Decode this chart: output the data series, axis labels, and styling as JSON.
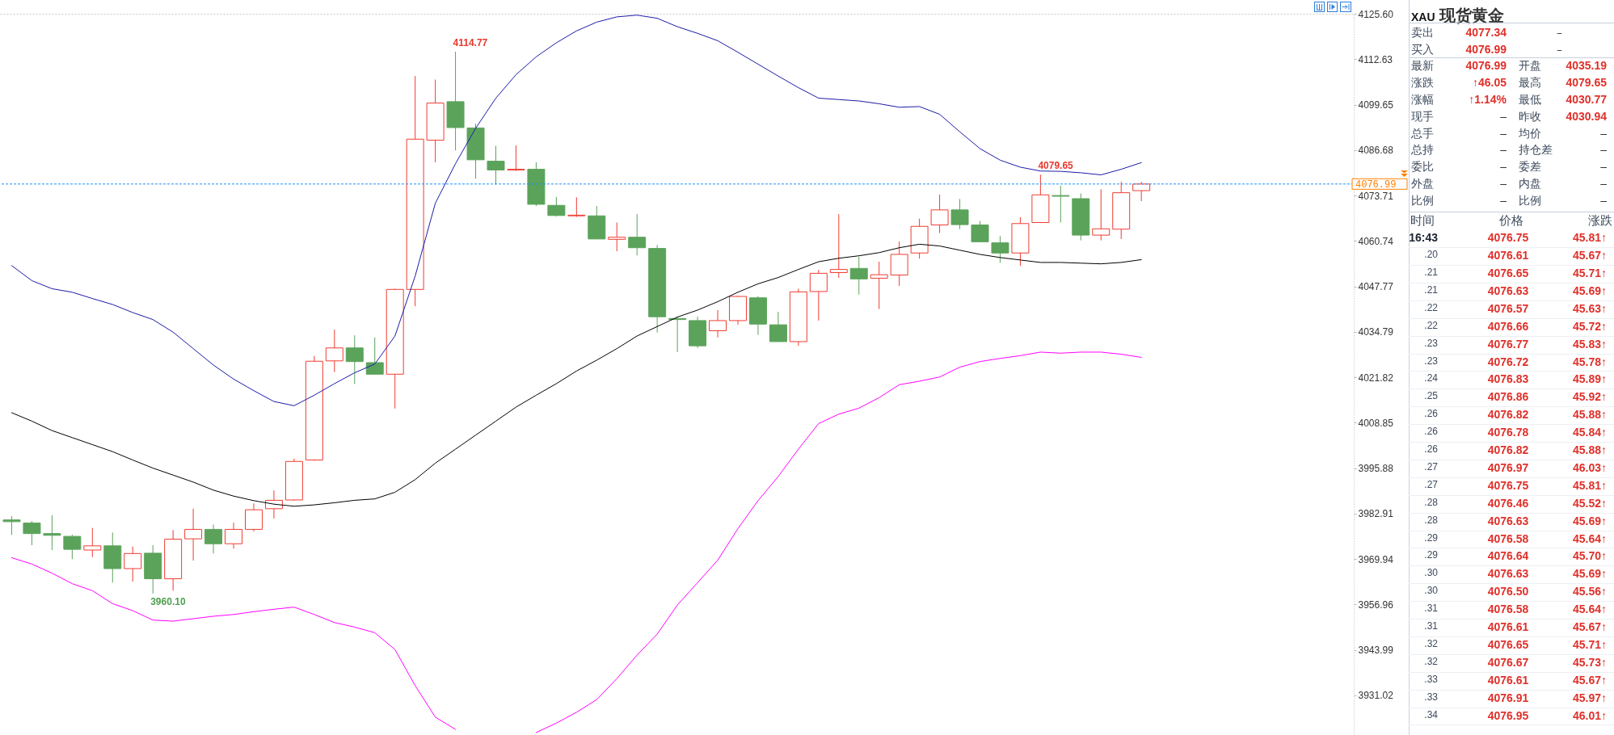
{
  "chart_data": [
    {
      "type": "candlestick",
      "categories": [
        null,
        null,
        null,
        null,
        null,
        null,
        null,
        null,
        null,
        null,
        null,
        null,
        null,
        null,
        null,
        null,
        null,
        null,
        null,
        null,
        null,
        null,
        null,
        null,
        null,
        null,
        null,
        null,
        null,
        null,
        null,
        null,
        null,
        null,
        null,
        null,
        null,
        null,
        null,
        null,
        null,
        null,
        null,
        null,
        null,
        null,
        null,
        null,
        null,
        null,
        null,
        null,
        null,
        null,
        null,
        null,
        null
      ],
      "ohlc": [
        [
          3981.1,
          3982.2,
          3976.8,
          3980.6
        ],
        [
          3980.2,
          3980.8,
          3973.9,
          3977.2
        ],
        [
          3977.2,
          3982.4,
          3972.5,
          3976.7
        ],
        [
          3976.4,
          3976.9,
          3969.9,
          3972.7
        ],
        [
          3972.5,
          3978.8,
          3970.5,
          3973.7
        ],
        [
          3973.7,
          3977.5,
          3963.2,
          3967.2
        ],
        [
          3967.2,
          3973.5,
          3963.5,
          3971.5
        ],
        [
          3971.6,
          3973.9,
          3960.1,
          3964.3
        ],
        [
          3964.3,
          3978.2,
          3960.9,
          3975.6
        ],
        [
          3975.7,
          3984.3,
          3969.5,
          3978.4
        ],
        [
          3978.4,
          3979.8,
          3971.5,
          3974.3
        ],
        [
          3974.3,
          3980.3,
          3972.9,
          3978.4
        ],
        [
          3978.4,
          3985.8,
          3977.8,
          3984.0
        ],
        [
          3984.3,
          3989.5,
          3981.5,
          3986.7
        ],
        [
          3986.8,
          3998.6,
          3986.6,
          3997.8
        ],
        [
          3998.2,
          4027.9,
          3998.0,
          4026.4
        ],
        [
          4026.5,
          4035.4,
          4023.3,
          4030.2
        ],
        [
          4030.2,
          4033.8,
          4019.9,
          4026.3
        ],
        [
          4026.0,
          4033.2,
          4022.7,
          4022.7
        ],
        [
          4022.7,
          4047.1,
          4012.9,
          4046.9
        ],
        [
          4046.9,
          4107.8,
          4042.1,
          4089.8
        ],
        [
          4089.5,
          4106.8,
          4083.2,
          4100.1
        ],
        [
          4100.5,
          4114.77,
          4086.6,
          4093.1
        ],
        [
          4093.0,
          4094.2,
          4078.5,
          4083.9
        ],
        [
          4083.5,
          4087.9,
          4076.8,
          4081.0
        ],
        [
          4081.0,
          4088.0,
          4080.7,
          4081.2
        ],
        [
          4081.2,
          4083.2,
          4070.7,
          4071.2
        ],
        [
          4070.9,
          4073.3,
          4067.7,
          4068.0
        ],
        [
          4067.9,
          4073.2,
          4067.6,
          4068.1
        ],
        [
          4067.9,
          4070.7,
          4061.3,
          4061.3
        ],
        [
          4061.2,
          4066.0,
          4057.8,
          4061.8
        ],
        [
          4061.8,
          4068.4,
          4056.6,
          4058.8
        ],
        [
          4058.6,
          4059.6,
          4034.6,
          4039.1
        ],
        [
          4038.6,
          4039.2,
          4029.0,
          4038.3
        ],
        [
          4038.0,
          4039.1,
          4030.2,
          4030.8
        ],
        [
          4035.1,
          4041.0,
          4033.2,
          4038.0
        ],
        [
          4038.0,
          4045.1,
          4036.8,
          4044.9
        ],
        [
          4044.5,
          4045.0,
          4033.9,
          4037.0
        ],
        [
          4036.8,
          4040.5,
          4032.0,
          4032.0
        ],
        [
          4032.0,
          4047.1,
          4030.8,
          4046.2
        ],
        [
          4046.3,
          4052.5,
          4038.0,
          4051.5
        ],
        [
          4051.7,
          4068.4,
          4050.2,
          4052.6
        ],
        [
          4052.9,
          4056.2,
          4045.4,
          4049.9
        ],
        [
          4050.1,
          4054.8,
          4041.3,
          4051.1
        ],
        [
          4051.0,
          4060.6,
          4047.9,
          4056.9
        ],
        [
          4057.3,
          4067.1,
          4055.7,
          4064.9
        ],
        [
          4065.3,
          4074.0,
          4063.0,
          4069.6
        ],
        [
          4069.6,
          4072.7,
          4064.1,
          4065.4
        ],
        [
          4065.3,
          4066.4,
          4060.5,
          4060.5
        ],
        [
          4060.2,
          4062.1,
          4054.5,
          4057.3
        ],
        [
          4057.3,
          4067.5,
          4053.6,
          4065.7
        ],
        [
          4066.0,
          4079.65,
          4066.0,
          4073.9
        ],
        [
          4073.7,
          4076.5,
          4066.0,
          4073.5
        ],
        [
          4072.8,
          4074.3,
          4060.9,
          4062.4
        ],
        [
          4062.4,
          4075.5,
          4060.9,
          4064.2
        ],
        [
          4064.1,
          4077.6,
          4061.3,
          4074.5
        ],
        [
          4075.1,
          4077.6,
          4072.1,
          4076.99
        ]
      ],
      "colors": [
        "#5ba35b",
        "#5ba35b",
        "#5ba35b",
        "#5ba35b",
        "#f03c32",
        "#5ba35b",
        "#f03c32",
        "#5ba35b",
        "#f03c32",
        "#f03c32",
        "#5ba35b",
        "#f03c32",
        "#f03c32",
        "#f03c32",
        "#f03c32",
        "#f03c32",
        "#f03c32",
        "#5ba35b",
        "#5ba35b",
        "#f03c32",
        "#f03c32",
        "#f03c32",
        "#5ba35b",
        "#5ba35b",
        "#5ba35b",
        "#f03c32",
        "#5ba35b",
        "#5ba35b",
        "#f03c32",
        "#5ba35b",
        "#f03c32",
        "#5ba35b",
        "#5ba35b",
        "#5ba35b",
        "#5ba35b",
        "#f03c32",
        "#f03c32",
        "#5ba35b",
        "#5ba35b",
        "#f03c32",
        "#f03c32",
        "#f03c32",
        "#5ba35b",
        "#f03c32",
        "#f03c32",
        "#f03c32",
        "#f03c32",
        "#5ba35b",
        "#5ba35b",
        "#5ba35b",
        "#f03c32",
        "#f03c32",
        "#5ba35b",
        "#5ba35b",
        "#f03c32",
        "#f03c32",
        "#f03c32"
      ],
      "series": [
        {
          "type": "line",
          "color": "#1c1ca8",
          "values": [
            4053.7,
            4049.4,
            4047.1,
            4046.1,
            4044.3,
            4042.6,
            4040.3,
            4038.3,
            4034.7,
            4030.0,
            4025.3,
            4021.3,
            4018.0,
            4014.9,
            4013.7,
            4016.7,
            4020.0,
            4023.1,
            4025.6,
            4033.6,
            4050.7,
            4071.5,
            4082.8,
            4092.9,
            4101.5,
            4108.2,
            4113.3,
            4117.3,
            4120.7,
            4123.2,
            4124.7,
            4125.2,
            4124.3,
            4121.9,
            4120.0,
            4117.9,
            4114.6,
            4111.2,
            4107.8,
            4104.5,
            4101.5,
            4101.1,
            4100.7,
            4099.9,
            4098.9,
            4099.1,
            4096.9,
            4091.9,
            4087.1,
            4083.8,
            4081.8,
            4080.7,
            4080.6,
            4080.2,
            4079.6,
            4081.2,
            4083.1
          ]
        },
        {
          "type": "line",
          "color": "#000000",
          "values": [
            4011.7,
            4009.3,
            4006.6,
            4004.6,
            4002.6,
            4000.6,
            3998.2,
            3995.9,
            3993.9,
            3991.9,
            3989.6,
            3987.9,
            3986.6,
            3985.6,
            3985.0,
            3985.4,
            3986.0,
            3986.7,
            3987.1,
            3989.0,
            3992.6,
            3997.3,
            4001.3,
            4005.3,
            4009.3,
            4013.3,
            4016.7,
            4020.0,
            4023.6,
            4026.7,
            4030.0,
            4033.6,
            4036.3,
            4039.0,
            4041.0,
            4043.4,
            4046.1,
            4048.5,
            4050.3,
            4052.6,
            4054.8,
            4055.8,
            4056.5,
            4057.4,
            4058.8,
            4059.8,
            4059.3,
            4058.1,
            4056.9,
            4056.0,
            4055.3,
            4054.6,
            4054.6,
            4054.4,
            4054.2,
            4054.6,
            4055.4
          ]
        },
        {
          "type": "line",
          "color": "#ff00ff",
          "values": [
            3970.3,
            3968.5,
            3965.9,
            3962.9,
            3960.9,
            3957.2,
            3955.2,
            3952.5,
            3952.2,
            3952.9,
            3953.6,
            3954.1,
            3954.9,
            3955.6,
            3956.2,
            3954.1,
            3951.8,
            3950.5,
            3948.9,
            3944.1,
            3933.8,
            3924.8,
            3921.3,
            null,
            null,
            null,
            3920.4,
            3923.1,
            3926.2,
            3929.8,
            3935.8,
            3942.5,
            3948.5,
            3956.8,
            3963.2,
            3969.6,
            3978.6,
            3986.6,
            3993.5,
            4001.3,
            4008.6,
            4011.3,
            4013.0,
            4016.0,
            4019.7,
            4020.7,
            4021.9,
            4024.7,
            4026.3,
            4027.2,
            4028.0,
            4029.0,
            4028.7,
            4029.0,
            4029.0,
            4028.4,
            4027.5
          ]
        }
      ],
      "ylim": [
        3919.7,
        4125.6
      ],
      "yticks": [
        {
          "value": 4125.6,
          "label": "4125.60"
        },
        4112.63,
        4099.65,
        4086.68,
        4073.71,
        4060.74,
        4047.77,
        4034.79,
        4021.82,
        4008.85,
        3995.88,
        3982.91,
        3969.94,
        3956.96,
        3943.99,
        3931.02
      ],
      "tick_labels": "y",
      "ref_lines": [
        {
          "axis": "y",
          "value": 4076.99,
          "label": "4076.99",
          "color": "#1e90ff",
          "line_style": "dashed"
        }
      ],
      "annotations": [
        "4114.77",
        "3960.10",
        {
          "text": "4079.65",
          "y": 4079.65
        }
      ]
    },
    {
      "type": "other",
      "title": "XAU 现货黄金",
      "annotations": [
        "卖出 4077.34 –",
        "买入 4076.99 –",
        "最新 4076.99 开盘 4035.19",
        "涨跌 ↑46.05 最高 4079.65",
        "涨幅 ↑1.14% 最低 4030.77",
        "现手 – 昨收 4030.94",
        "总手 – 均价 –",
        "总持 – 持仓差 –",
        "委比 – 委差 –",
        "外盘 – 内盘 –",
        "比例 – 比例 –"
      ]
    },
    {
      "type": "other",
      "annotations": [
        "时间 价格 涨跌",
        "16:43 4076.75 45.81↑",
        ".20 4076.61 45.67↑",
        ".21 4076.65 45.71↑",
        ".21 4076.63 45.69↑",
        ".22 4076.57 45.63↑",
        ".22 4076.66 45.72↑",
        ".23 4076.77 45.83↑",
        ".23 4076.72 45.78↑",
        ".24 4076.83 45.89↑",
        ".25 4076.86 45.92↑",
        ".26 4076.82 45.88↑",
        ".26 4076.78 45.84↑",
        ".26 4076.82 45.88↑",
        ".27 4076.97 46.03↑",
        ".27 4076.75 45.81↑",
        ".28 4076.46 45.52↑",
        ".28 4076.63 45.69↑",
        ".29 4076.58 45.64↑",
        ".29 4076.64 45.70↑",
        ".30 4076.63 45.69↑",
        ".30 4076.50 45.56↑",
        ".31 4076.58 45.64↑",
        ".31 4076.61 45.67↑",
        ".32 4076.65 45.71↑",
        ".32 4076.67 45.73↑",
        ".33 4076.61 45.67↑",
        ".33 4076.91 45.97↑",
        ".34 4076.95 46.01↑"
      ]
    }
  ]
}
